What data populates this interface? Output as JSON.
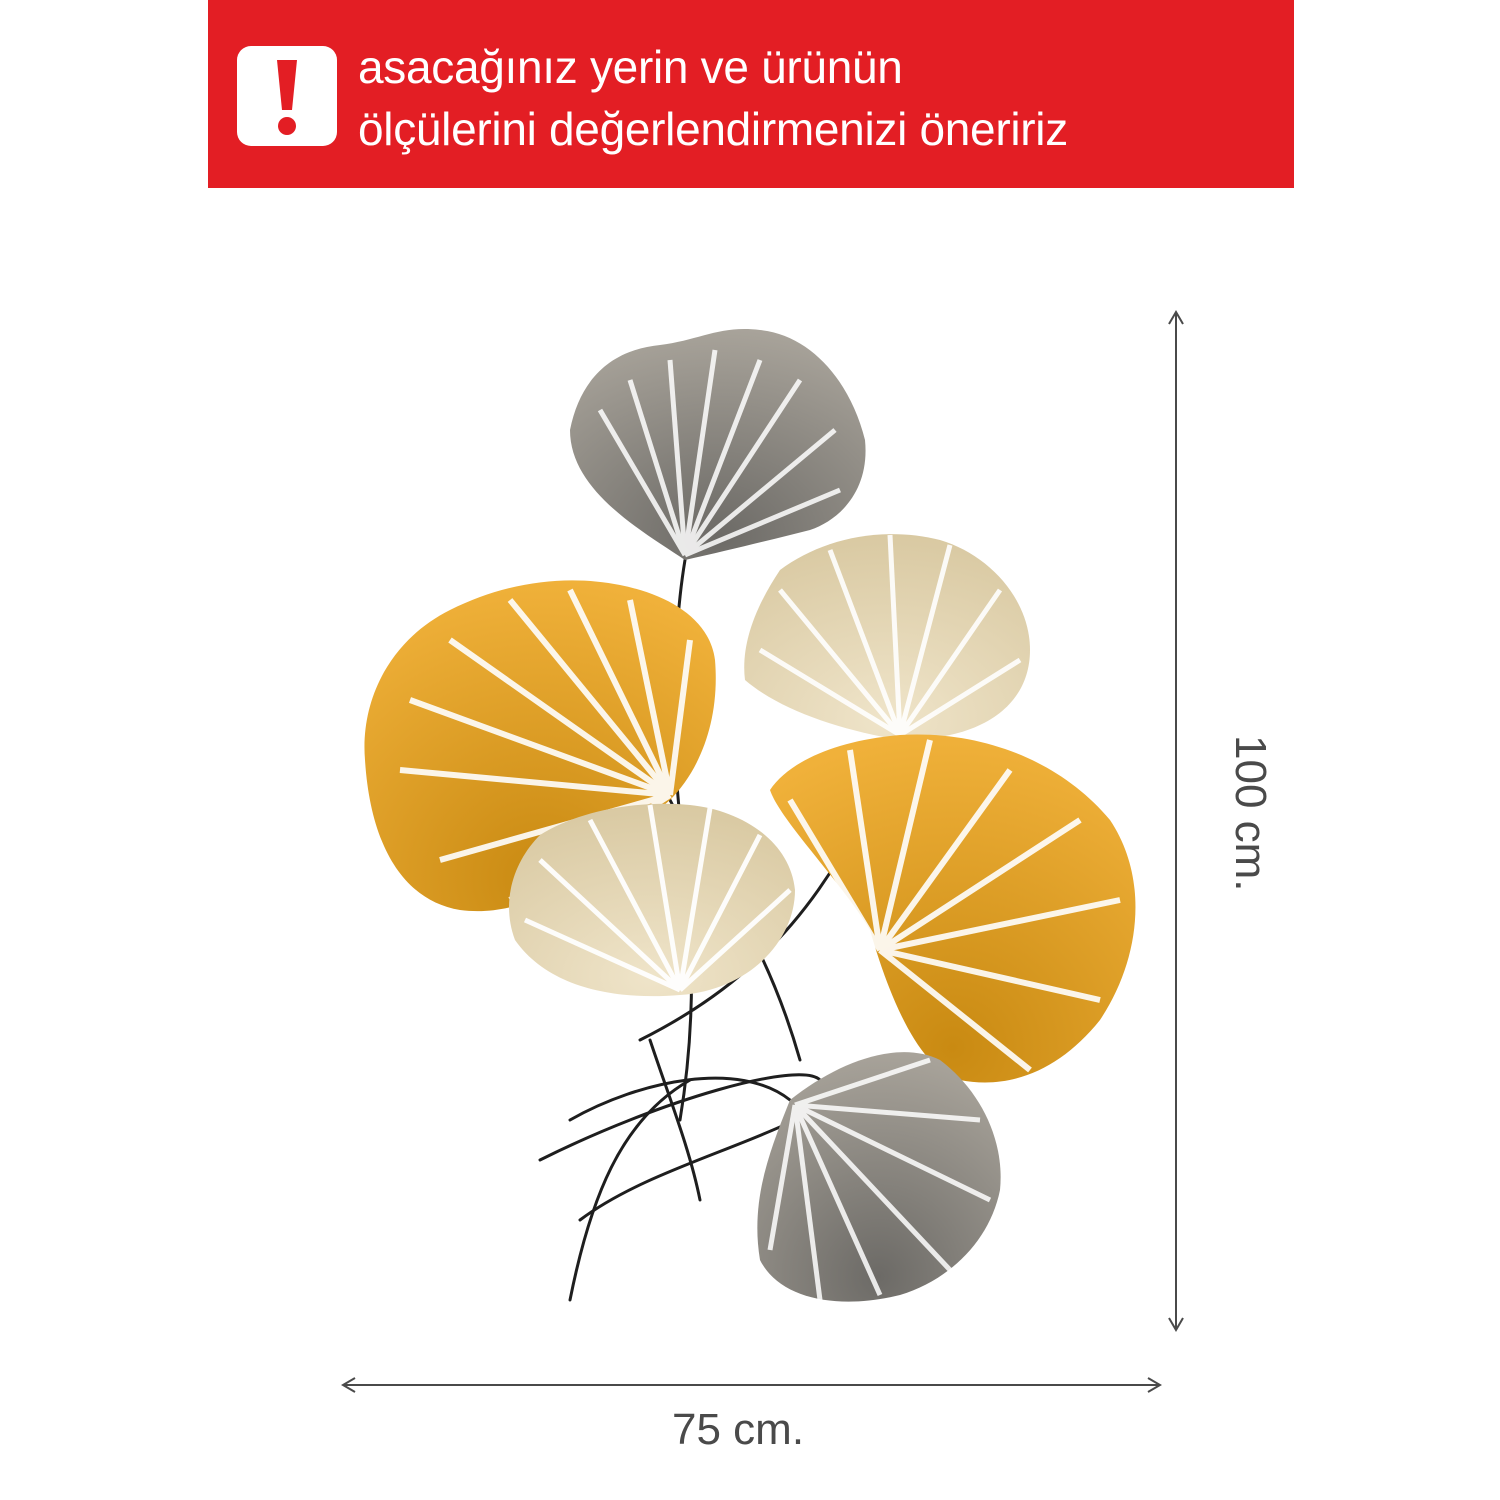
{
  "banner": {
    "background_color": "#e31e24",
    "icon": "exclamation-icon",
    "line1": "asacağınız yerin ve ürünün",
    "line2": "ölçülerini değerlendirmenizi öneririz"
  },
  "product": {
    "icon": "ginkgo-leaf-wall-art-image",
    "colors": {
      "gold": "#e9a423",
      "cream": "#e8dcc0",
      "gray": "#8c8a86",
      "stem": "#1e1e1e"
    }
  },
  "dimensions": {
    "width_label": "75  cm.",
    "height_label": "100 cm."
  }
}
